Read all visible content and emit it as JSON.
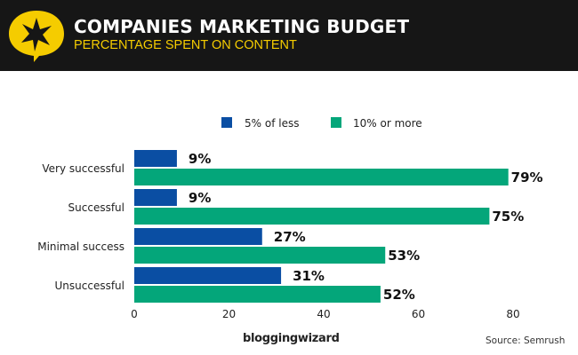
{
  "header": {
    "title": "COMPANIES MARKETING BUDGET",
    "subtitle": "PERCENTAGE SPENT ON CONTENT",
    "logo_icon": "star-speech-bubble-icon"
  },
  "chart_data": {
    "type": "bar",
    "orientation": "horizontal",
    "title": "COMPANIES MARKETING BUDGET",
    "subtitle": "PERCENTAGE SPENT ON CONTENT",
    "categories": [
      "Very successful",
      "Successful",
      "Minimal success",
      "Unsuccessful"
    ],
    "series": [
      {
        "name": "5% of less",
        "color": "#0a4ea3",
        "values": [
          9,
          9,
          27,
          31
        ],
        "labels": [
          "9%",
          "9%",
          "27%",
          "31%"
        ]
      },
      {
        "name": "10% or more",
        "color": "#04a67a",
        "values": [
          79,
          75,
          53,
          52
        ],
        "labels": [
          "79%",
          "75%",
          "53%",
          "52%"
        ]
      }
    ],
    "xlim": [
      0,
      80
    ],
    "xticks": [
      "0",
      "20",
      "40",
      "60",
      "80"
    ],
    "grid": false,
    "legend": "top"
  },
  "footer": {
    "brand": "bloggingwizard",
    "source": "Source:  Semrush"
  }
}
